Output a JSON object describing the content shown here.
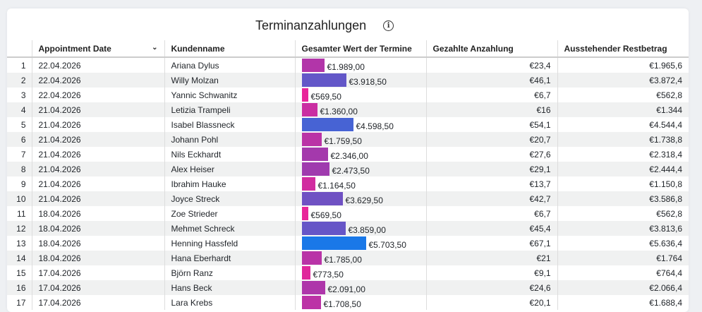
{
  "title": "Terminanzahlungen",
  "info_icon": "info-icon",
  "columns": [
    "",
    "Appointment Date",
    "Kundenname",
    "Gesamter Wert der Termine",
    "Gezahlte Anzahlung",
    "Ausstehender Restbetrag"
  ],
  "sort_icon": "chevron-down-icon",
  "bar_colors": {
    "low": "#e8259a",
    "mid": "#a23aad",
    "high": "#1a78e8"
  },
  "rows": [
    {
      "n": "1",
      "date": "22.04.2026",
      "name": "Ariana Dylus",
      "total": 1989.0,
      "total_label": "€1.989,00",
      "paid": "€23,4",
      "rest": "€1.965,6"
    },
    {
      "n": "2",
      "date": "22.04.2026",
      "name": "Willy Molzan",
      "total": 3918.5,
      "total_label": "€3.918,50",
      "paid": "€46,1",
      "rest": "€3.872,4"
    },
    {
      "n": "3",
      "date": "22.04.2026",
      "name": "Yannic Schwanitz",
      "total": 569.5,
      "total_label": "€569,50",
      "paid": "€6,7",
      "rest": "€562,8"
    },
    {
      "n": "4",
      "date": "21.04.2026",
      "name": "Letizia Trampeli",
      "total": 1360.0,
      "total_label": "€1.360,00",
      "paid": "€16",
      "rest": "€1.344"
    },
    {
      "n": "5",
      "date": "21.04.2026",
      "name": "Isabel Blassneck",
      "total": 4598.5,
      "total_label": "€4.598,50",
      "paid": "€54,1",
      "rest": "€4.544,4"
    },
    {
      "n": "6",
      "date": "21.04.2026",
      "name": "Johann Pohl",
      "total": 1759.5,
      "total_label": "€1.759,50",
      "paid": "€20,7",
      "rest": "€1.738,8"
    },
    {
      "n": "7",
      "date": "21.04.2026",
      "name": "Nils Eckhardt",
      "total": 2346.0,
      "total_label": "€2.346,00",
      "paid": "€27,6",
      "rest": "€2.318,4"
    },
    {
      "n": "8",
      "date": "21.04.2026",
      "name": "Alex Heiser",
      "total": 2473.5,
      "total_label": "€2.473,50",
      "paid": "€29,1",
      "rest": "€2.444,4"
    },
    {
      "n": "9",
      "date": "21.04.2026",
      "name": "Ibrahim Hauke",
      "total": 1164.5,
      "total_label": "€1.164,50",
      "paid": "€13,7",
      "rest": "€1.150,8"
    },
    {
      "n": "10",
      "date": "21.04.2026",
      "name": "Joyce Streck",
      "total": 3629.5,
      "total_label": "€3.629,50",
      "paid": "€42,7",
      "rest": "€3.586,8"
    },
    {
      "n": "11",
      "date": "18.04.2026",
      "name": "Zoe Strieder",
      "total": 569.5,
      "total_label": "€569,50",
      "paid": "€6,7",
      "rest": "€562,8"
    },
    {
      "n": "12",
      "date": "18.04.2026",
      "name": "Mehmet Schreck",
      "total": 3859.0,
      "total_label": "€3.859,00",
      "paid": "€45,4",
      "rest": "€3.813,6"
    },
    {
      "n": "13",
      "date": "18.04.2026",
      "name": "Henning Hassfeld",
      "total": 5703.5,
      "total_label": "€5.703,50",
      "paid": "€67,1",
      "rest": "€5.636,4"
    },
    {
      "n": "14",
      "date": "18.04.2026",
      "name": "Hana Eberhardt",
      "total": 1785.0,
      "total_label": "€1.785,00",
      "paid": "€21",
      "rest": "€1.764"
    },
    {
      "n": "15",
      "date": "17.04.2026",
      "name": "Björn Ranz",
      "total": 773.5,
      "total_label": "€773,50",
      "paid": "€9,1",
      "rest": "€764,4"
    },
    {
      "n": "16",
      "date": "17.04.2026",
      "name": "Hans Beck",
      "total": 2091.0,
      "total_label": "€2.091,00",
      "paid": "€24,6",
      "rest": "€2.066,4"
    },
    {
      "n": "17",
      "date": "17.04.2026",
      "name": "Lara Krebs",
      "total": 1708.5,
      "total_label": "€1.708,50",
      "paid": "€20,1",
      "rest": "€1.688,4"
    }
  ]
}
